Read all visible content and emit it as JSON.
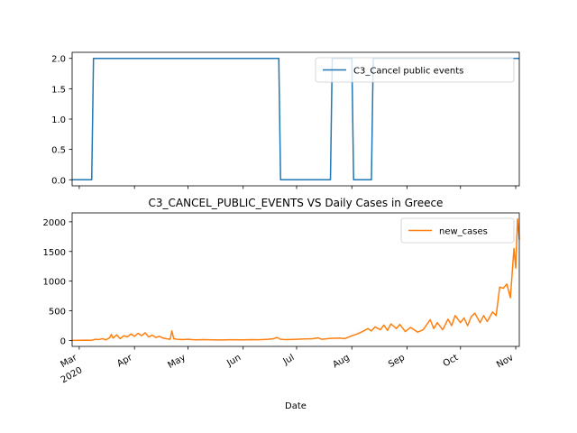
{
  "chart_data": [
    {
      "type": "line",
      "title": "",
      "xlabel": "",
      "ylabel": "",
      "ylim": [
        -0.1,
        2.1
      ],
      "xlim": [
        "2020-02-26",
        "2020-11-03"
      ],
      "yticks": [
        "0.0",
        "0.5",
        "1.0",
        "1.5",
        "2.0"
      ],
      "legend_position": "top-right",
      "grid": false,
      "series": [
        {
          "name": "C3_Cancel public events",
          "color": "#1f77b4",
          "points": [
            [
              "2020-02-26",
              0
            ],
            [
              "2020-03-08",
              0
            ],
            [
              "2020-03-09",
              2
            ],
            [
              "2020-06-21",
              2
            ],
            [
              "2020-06-22",
              0
            ],
            [
              "2020-07-20",
              0
            ],
            [
              "2020-07-21",
              2
            ],
            [
              "2020-08-01",
              2
            ],
            [
              "2020-08-02",
              0
            ],
            [
              "2020-08-12",
              0
            ],
            [
              "2020-08-13",
              2
            ],
            [
              "2020-11-03",
              2
            ]
          ]
        }
      ]
    },
    {
      "type": "line",
      "title": "C3_CANCEL_PUBLIC_EVENTS VS Daily Cases in Greece",
      "xlabel": "Date",
      "ylabel": "",
      "ylim": [
        -100,
        2150
      ],
      "xlim": [
        "2020-02-26",
        "2020-11-03"
      ],
      "yticks": [
        "0",
        "500",
        "1000",
        "1500",
        "2000"
      ],
      "xticks": [
        {
          "date": "2020-03-01",
          "label": "Mar",
          "sublabel": "2020"
        },
        {
          "date": "2020-04-01",
          "label": "Apr",
          "sublabel": ""
        },
        {
          "date": "2020-05-01",
          "label": "May",
          "sublabel": ""
        },
        {
          "date": "2020-06-01",
          "label": "Jun",
          "sublabel": ""
        },
        {
          "date": "2020-07-01",
          "label": "Jul",
          "sublabel": ""
        },
        {
          "date": "2020-08-01",
          "label": "Aug",
          "sublabel": ""
        },
        {
          "date": "2020-09-01",
          "label": "Sep",
          "sublabel": ""
        },
        {
          "date": "2020-10-01",
          "label": "Oct",
          "sublabel": ""
        },
        {
          "date": "2020-11-01",
          "label": "Nov",
          "sublabel": ""
        }
      ],
      "legend_position": "top-right",
      "grid": false,
      "series": [
        {
          "name": "new_cases",
          "color": "#ff7f0e",
          "points": [
            [
              "2020-02-26",
              1
            ],
            [
              "2020-03-01",
              2
            ],
            [
              "2020-03-05",
              5
            ],
            [
              "2020-03-08",
              3
            ],
            [
              "2020-03-10",
              20
            ],
            [
              "2020-03-12",
              15
            ],
            [
              "2020-03-14",
              30
            ],
            [
              "2020-03-16",
              10
            ],
            [
              "2020-03-18",
              45
            ],
            [
              "2020-03-19",
              100
            ],
            [
              "2020-03-20",
              40
            ],
            [
              "2020-03-22",
              95
            ],
            [
              "2020-03-24",
              30
            ],
            [
              "2020-03-26",
              80
            ],
            [
              "2020-03-28",
              60
            ],
            [
              "2020-03-30",
              110
            ],
            [
              "2020-04-01",
              70
            ],
            [
              "2020-04-03",
              120
            ],
            [
              "2020-04-05",
              80
            ],
            [
              "2020-04-07",
              130
            ],
            [
              "2020-04-09",
              60
            ],
            [
              "2020-04-11",
              90
            ],
            [
              "2020-04-13",
              50
            ],
            [
              "2020-04-15",
              70
            ],
            [
              "2020-04-17",
              40
            ],
            [
              "2020-04-19",
              30
            ],
            [
              "2020-04-21",
              20
            ],
            [
              "2020-04-22",
              160
            ],
            [
              "2020-04-23",
              30
            ],
            [
              "2020-04-25",
              20
            ],
            [
              "2020-04-28",
              15
            ],
            [
              "2020-05-01",
              20
            ],
            [
              "2020-05-05",
              10
            ],
            [
              "2020-05-10",
              15
            ],
            [
              "2020-05-15",
              10
            ],
            [
              "2020-05-20",
              8
            ],
            [
              "2020-05-25",
              12
            ],
            [
              "2020-06-01",
              10
            ],
            [
              "2020-06-05",
              15
            ],
            [
              "2020-06-10",
              12
            ],
            [
              "2020-06-15",
              20
            ],
            [
              "2020-06-18",
              30
            ],
            [
              "2020-06-20",
              50
            ],
            [
              "2020-06-22",
              20
            ],
            [
              "2020-06-25",
              15
            ],
            [
              "2020-07-01",
              20
            ],
            [
              "2020-07-05",
              25
            ],
            [
              "2020-07-10",
              30
            ],
            [
              "2020-07-13",
              45
            ],
            [
              "2020-07-15",
              20
            ],
            [
              "2020-07-20",
              35
            ],
            [
              "2020-07-25",
              40
            ],
            [
              "2020-07-28",
              30
            ],
            [
              "2020-08-01",
              80
            ],
            [
              "2020-08-04",
              110
            ],
            [
              "2020-08-07",
              150
            ],
            [
              "2020-08-10",
              200
            ],
            [
              "2020-08-12",
              160
            ],
            [
              "2020-08-14",
              230
            ],
            [
              "2020-08-17",
              180
            ],
            [
              "2020-08-19",
              260
            ],
            [
              "2020-08-21",
              170
            ],
            [
              "2020-08-23",
              280
            ],
            [
              "2020-08-26",
              200
            ],
            [
              "2020-08-28",
              270
            ],
            [
              "2020-08-31",
              150
            ],
            [
              "2020-09-03",
              220
            ],
            [
              "2020-09-07",
              140
            ],
            [
              "2020-09-10",
              180
            ],
            [
              "2020-09-14",
              350
            ],
            [
              "2020-09-16",
              200
            ],
            [
              "2020-09-18",
              300
            ],
            [
              "2020-09-21",
              180
            ],
            [
              "2020-09-24",
              360
            ],
            [
              "2020-09-26",
              250
            ],
            [
              "2020-09-28",
              420
            ],
            [
              "2020-10-01",
              300
            ],
            [
              "2020-10-03",
              380
            ],
            [
              "2020-10-05",
              250
            ],
            [
              "2020-10-07",
              400
            ],
            [
              "2020-10-09",
              460
            ],
            [
              "2020-10-12",
              300
            ],
            [
              "2020-10-14",
              420
            ],
            [
              "2020-10-16",
              320
            ],
            [
              "2020-10-19",
              480
            ],
            [
              "2020-10-21",
              420
            ],
            [
              "2020-10-23",
              900
            ],
            [
              "2020-10-25",
              880
            ],
            [
              "2020-10-27",
              950
            ],
            [
              "2020-10-29",
              720
            ],
            [
              "2020-10-31",
              1550
            ],
            [
              "2020-11-01",
              1220
            ],
            [
              "2020-11-02",
              2050
            ],
            [
              "2020-11-03",
              1700
            ]
          ]
        }
      ]
    }
  ]
}
